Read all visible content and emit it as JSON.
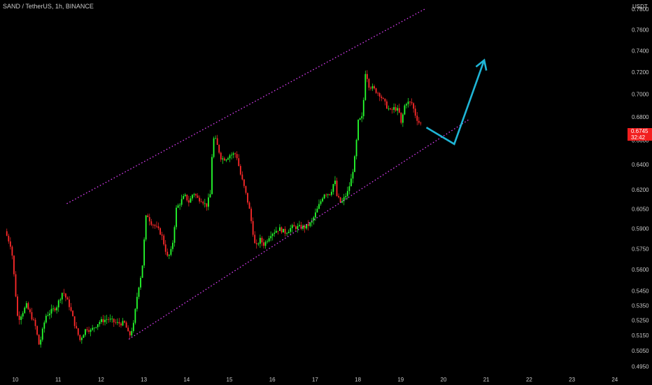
{
  "header": {
    "title": "SAND / TetherUS, 1h, BINANCE",
    "unit": "USDT"
  },
  "price_tag": {
    "price": "0.6745",
    "countdown": "32:42",
    "color": "#f21e1e"
  },
  "colors": {
    "up": "#26ff2e",
    "down": "#ff2a2a",
    "channel": "#e040fb",
    "projection": "#1fb5d6",
    "axis_text": "#c8c8c8"
  },
  "chart_data": {
    "type": "candlestick",
    "title": "SAND / TetherUS, 1h, BINANCE",
    "xlabel": "",
    "ylabel": "USDT",
    "x_ticks": [
      "10",
      "11",
      "12",
      "13",
      "14",
      "15",
      "16",
      "17",
      "18",
      "19",
      "20",
      "21",
      "22",
      "23",
      "24"
    ],
    "x_range_days": [
      9.8,
      24.2
    ],
    "y_ticks": [
      "0.7800",
      "0.7600",
      "0.7400",
      "0.7200",
      "0.7000",
      "0.6800",
      "0.6600",
      "0.6400",
      "0.6200",
      "0.6050",
      "0.5900",
      "0.5750",
      "0.5600",
      "0.5450",
      "0.5350",
      "0.5250",
      "0.5150",
      "0.5050",
      "0.4950"
    ],
    "y_range": [
      0.49,
      0.785
    ],
    "y_scale": "log",
    "price_path": [
      [
        9.8,
        0.588
      ],
      [
        9.95,
        0.576
      ],
      [
        10.1,
        0.525
      ],
      [
        10.3,
        0.535
      ],
      [
        10.5,
        0.522
      ],
      [
        10.6,
        0.508
      ],
      [
        10.75,
        0.528
      ],
      [
        11.0,
        0.534
      ],
      [
        11.15,
        0.545
      ],
      [
        11.3,
        0.535
      ],
      [
        11.45,
        0.52
      ],
      [
        11.55,
        0.512
      ],
      [
        11.7,
        0.52
      ],
      [
        11.8,
        0.518
      ],
      [
        12.0,
        0.524
      ],
      [
        12.2,
        0.526
      ],
      [
        12.4,
        0.523
      ],
      [
        12.6,
        0.523
      ],
      [
        12.7,
        0.514
      ],
      [
        12.8,
        0.522
      ],
      [
        12.9,
        0.545
      ],
      [
        13.0,
        0.56
      ],
      [
        13.1,
        0.602
      ],
      [
        13.2,
        0.595
      ],
      [
        13.3,
        0.592
      ],
      [
        13.45,
        0.586
      ],
      [
        13.6,
        0.568
      ],
      [
        13.7,
        0.575
      ],
      [
        13.8,
        0.605
      ],
      [
        13.95,
        0.613
      ],
      [
        14.0,
        0.615
      ],
      [
        14.1,
        0.61
      ],
      [
        14.2,
        0.618
      ],
      [
        14.3,
        0.613
      ],
      [
        14.4,
        0.612
      ],
      [
        14.5,
        0.607
      ],
      [
        14.6,
        0.617
      ],
      [
        14.65,
        0.662
      ],
      [
        14.72,
        0.66
      ],
      [
        14.85,
        0.645
      ],
      [
        14.95,
        0.645
      ],
      [
        15.05,
        0.648
      ],
      [
        15.2,
        0.649
      ],
      [
        15.3,
        0.632
      ],
      [
        15.4,
        0.62
      ],
      [
        15.5,
        0.606
      ],
      [
        15.65,
        0.575
      ],
      [
        15.75,
        0.582
      ],
      [
        15.85,
        0.578
      ],
      [
        16.0,
        0.586
      ],
      [
        16.2,
        0.59
      ],
      [
        16.35,
        0.587
      ],
      [
        16.5,
        0.591
      ],
      [
        16.65,
        0.591
      ],
      [
        16.8,
        0.591
      ],
      [
        16.95,
        0.594
      ],
      [
        17.1,
        0.605
      ],
      [
        17.25,
        0.617
      ],
      [
        17.4,
        0.617
      ],
      [
        17.5,
        0.628
      ],
      [
        17.55,
        0.615
      ],
      [
        17.65,
        0.609
      ],
      [
        17.8,
        0.618
      ],
      [
        17.9,
        0.63
      ],
      [
        17.98,
        0.648
      ],
      [
        18.05,
        0.676
      ],
      [
        18.15,
        0.68
      ],
      [
        18.22,
        0.722
      ],
      [
        18.3,
        0.708
      ],
      [
        18.4,
        0.705
      ],
      [
        18.55,
        0.7
      ],
      [
        18.7,
        0.69
      ],
      [
        18.8,
        0.685
      ],
      [
        18.9,
        0.688
      ],
      [
        19.0,
        0.685
      ],
      [
        19.05,
        0.674
      ],
      [
        19.15,
        0.693
      ],
      [
        19.3,
        0.692
      ],
      [
        19.4,
        0.68
      ],
      [
        19.48,
        0.6745
      ]
    ],
    "channel": {
      "upper": [
        [
          11.2,
          0.609
        ],
        [
          19.6,
          0.781
        ]
      ],
      "lower": [
        [
          12.65,
          0.5125
        ],
        [
          20.6,
          0.678
        ]
      ]
    },
    "projection": [
      [
        19.6,
        0.671
      ],
      [
        20.25,
        0.657
      ],
      [
        20.95,
        0.731
      ]
    ],
    "last_price": 0.6745
  }
}
